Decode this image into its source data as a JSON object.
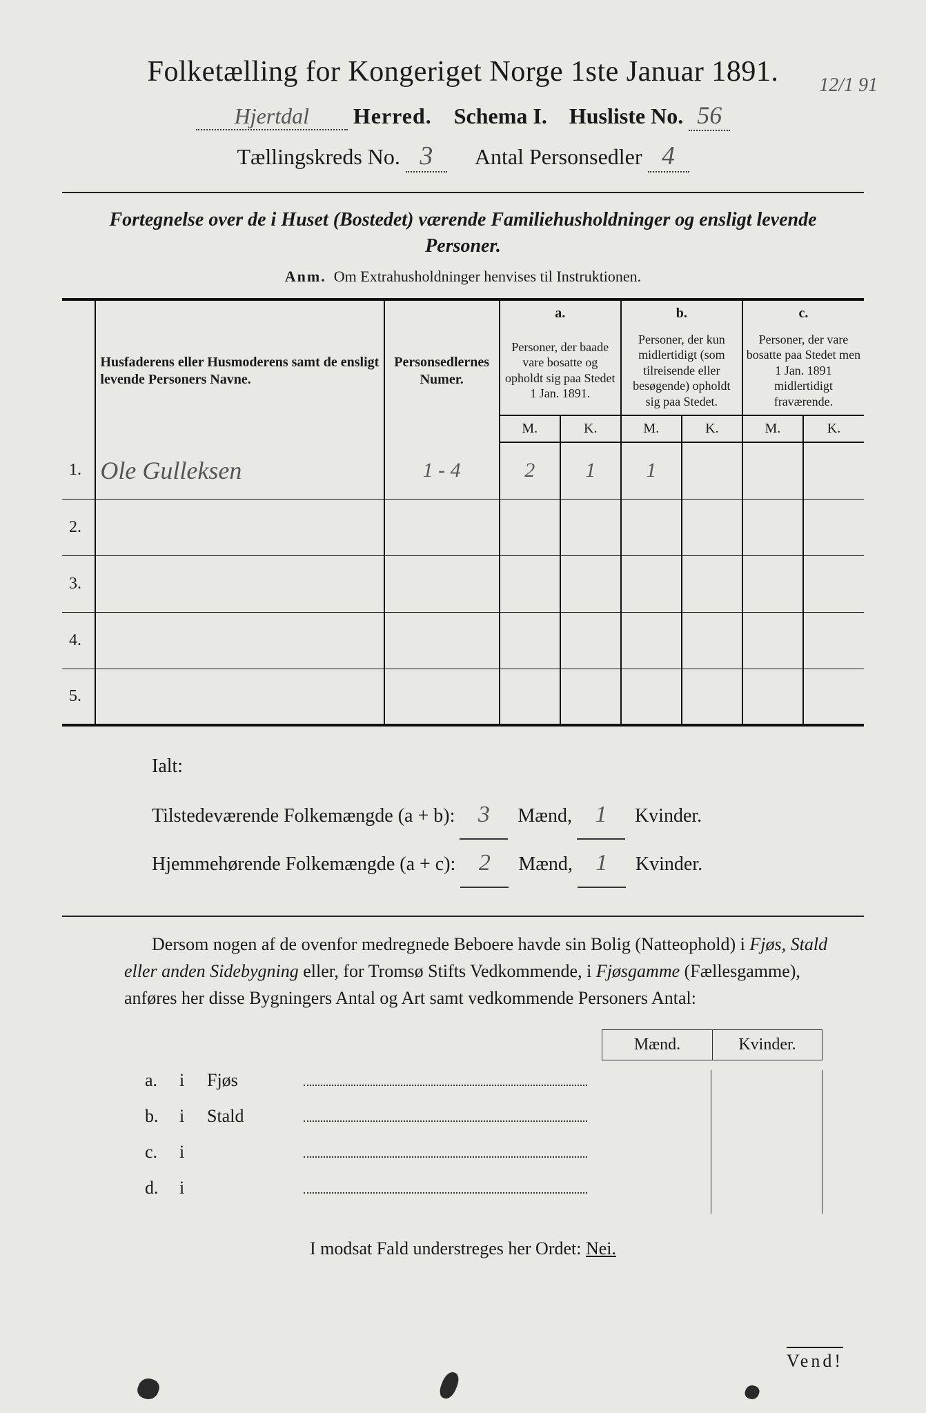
{
  "header": {
    "title": "Folketælling for Kongeriget Norge 1ste Januar 1891.",
    "herred_value": "Hjertdal",
    "herred_label": "Herred.",
    "schema_label": "Schema I.",
    "husliste_label": "Husliste No.",
    "husliste_value": "56",
    "corner_date": "12/1 91",
    "kreds_label": "Tællingskreds No.",
    "kreds_value": "3",
    "antal_label": "Antal Personsedler",
    "antal_value": "4"
  },
  "subtitle": "Fortegnelse over de i Huset (Bostedet) værende Familiehusholdninger og ensligt levende Personer.",
  "anm_label": "Anm.",
  "anm_text": "Om Extrahusholdninger henvises til Instruktionen.",
  "table": {
    "col_name_header": "Husfaderens eller Husmoderens samt de ensligt levende Personers Navne.",
    "col_person_header": "Personsedlernes Numer.",
    "a_label": "a.",
    "b_label": "b.",
    "c_label": "c.",
    "a_desc": "Personer, der baade vare bosatte og opholdt sig paa Stedet 1 Jan. 1891.",
    "b_desc": "Personer, der kun midlertidigt (som tilreisende eller besøgende) opholdt sig paa Stedet.",
    "c_desc": "Personer, der vare bosatte paa Stedet men 1 Jan. 1891 midlertidigt fraværende.",
    "M": "M.",
    "K": "K.",
    "rows": [
      {
        "num": "1.",
        "name": "Ole Gulleksen",
        "person": "1 - 4",
        "a_m": "2",
        "a_k": "1",
        "b_m": "1",
        "b_k": "",
        "c_m": "",
        "c_k": ""
      },
      {
        "num": "2.",
        "name": "",
        "person": "",
        "a_m": "",
        "a_k": "",
        "b_m": "",
        "b_k": "",
        "c_m": "",
        "c_k": ""
      },
      {
        "num": "3.",
        "name": "",
        "person": "",
        "a_m": "",
        "a_k": "",
        "b_m": "",
        "b_k": "",
        "c_m": "",
        "c_k": ""
      },
      {
        "num": "4.",
        "name": "",
        "person": "",
        "a_m": "",
        "a_k": "",
        "b_m": "",
        "b_k": "",
        "c_m": "",
        "c_k": ""
      },
      {
        "num": "5.",
        "name": "",
        "person": "",
        "a_m": "",
        "a_k": "",
        "b_m": "",
        "b_k": "",
        "c_m": "",
        "c_k": ""
      }
    ]
  },
  "totals": {
    "ialt": "Ialt:",
    "line1_label": "Tilstedeværende Folkemængde (a + b):",
    "line1_m": "3",
    "line1_k": "1",
    "line2_label": "Hjemmehørende Folkemængde (a + c):",
    "line2_m": "2",
    "line2_k": "1",
    "maend": "Mænd,",
    "kvinder": "Kvinder."
  },
  "para": {
    "text1": "Dersom nogen af de ovenfor medregnede Beboere havde sin Bolig (Natteophold) i ",
    "ital1": "Fjøs, Stald eller anden Sidebygning",
    "text2": " eller, for Tromsø Stifts Vedkommende, i ",
    "ital2": "Fjøsgamme",
    "text3": " (Fællesgamme), anføres her disse Bygningers Antal og Art samt vedkommende Personers Antal:"
  },
  "mk": {
    "maend": "Mænd.",
    "kvinder": "Kvinder."
  },
  "sublist": {
    "rows": [
      {
        "lbl": "a.",
        "i": "i",
        "type": "Fjøs"
      },
      {
        "lbl": "b.",
        "i": "i",
        "type": "Stald"
      },
      {
        "lbl": "c.",
        "i": "i",
        "type": ""
      },
      {
        "lbl": "d.",
        "i": "i",
        "type": ""
      }
    ]
  },
  "nei_line_pre": "I modsat Fald understreges her Ordet: ",
  "nei": "Nei.",
  "vend": "Vend!"
}
